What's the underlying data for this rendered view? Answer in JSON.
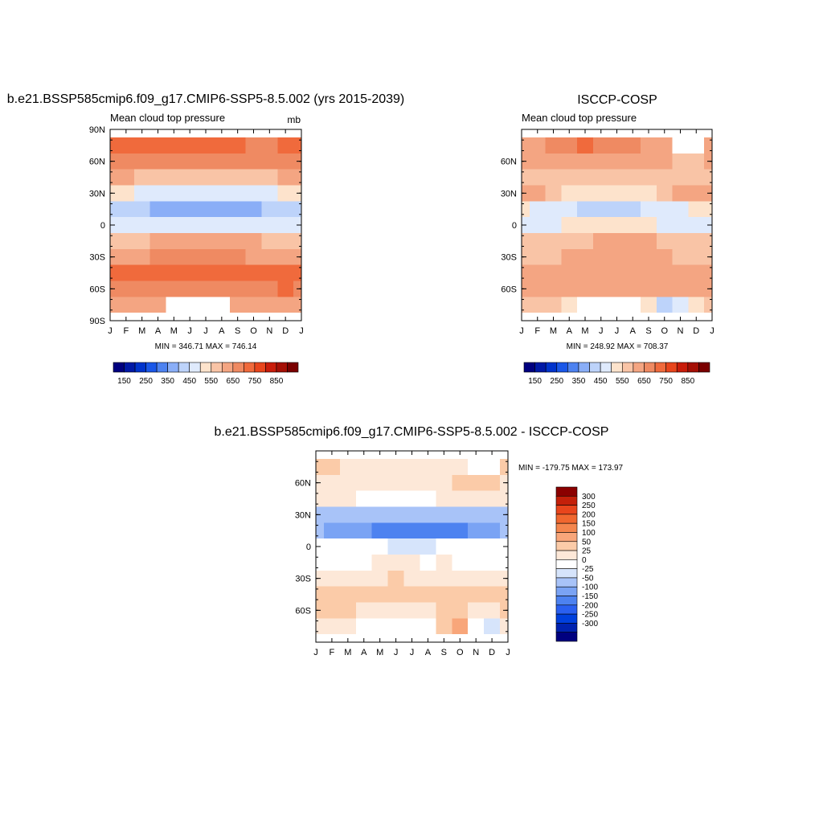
{
  "colors": {
    "abs_scale": [
      "#00007f",
      "#0019a6",
      "#0033cc",
      "#1a57e8",
      "#4d82f0",
      "#8aaef7",
      "#bdd3fa",
      "#dfeafc",
      "#fde3cc",
      "#f9c4a6",
      "#f4a582",
      "#ef8a62",
      "#f06a3c",
      "#e8451c",
      "#c91c0a",
      "#a50f05",
      "#7a0000"
    ],
    "diff_scale": [
      "#00007f",
      "#0022b0",
      "#0040dd",
      "#2a60f0",
      "#4d82f0",
      "#7aa3f4",
      "#a8c3f8",
      "#d6e4fb",
      "#ffffff",
      "#fde8d8",
      "#fbcba8",
      "#f8a67a",
      "#f4864e",
      "#f0672f",
      "#e8451c",
      "#c4200a",
      "#8b0000"
    ]
  },
  "panels": {
    "model": {
      "title": "b.e21.BSSP585cmip6.f09_g17.CMIP6-SSP5-8.5.002 (yrs 2015-2039)",
      "left_label": "Mean cloud top pressure",
      "right_label": "mb",
      "stats": "MIN = 346.71 MAX = 746.14",
      "y_ticks": [
        "90N",
        "60N",
        "30N",
        "0",
        "30S",
        "60S",
        "90S"
      ]
    },
    "obs": {
      "title": "ISCCP-COSP",
      "left_label": "Mean cloud top pressure",
      "stats": "MIN = 248.92 MAX = 708.37",
      "y_ticks": [
        "60N",
        "30N",
        "0",
        "30S",
        "60S"
      ]
    },
    "diff": {
      "title": "b.e21.BSSP585cmip6.f09_g17.CMIP6-SSP5-8.5.002 - ISCCP-COSP",
      "stats": "MIN = -179.75 MAX = 173.97",
      "y_ticks": [
        "60N",
        "30N",
        "0",
        "30S",
        "60S"
      ]
    }
  },
  "months": [
    "J",
    "F",
    "M",
    "A",
    "M",
    "J",
    "J",
    "A",
    "S",
    "O",
    "N",
    "D",
    "J"
  ],
  "abs_colorbar_labels": [
    "150",
    "250",
    "350",
    "450",
    "550",
    "650",
    "750",
    "850"
  ],
  "diff_colorbar_labels": [
    "300",
    "250",
    "200",
    "150",
    "100",
    "50",
    "25",
    "0",
    "-25",
    "-50",
    "-100",
    "-150",
    "-200",
    "-250",
    "-300"
  ],
  "chart_data": [
    {
      "type": "heatmap",
      "title": "b.e21.BSSP585cmip6.f09_g17.CMIP6-SSP5-8.5.002 (yrs 2015-2039)",
      "subtitle": "Mean cloud top pressure",
      "units": "mb",
      "x_ticks": [
        "J",
        "F",
        "M",
        "A",
        "M",
        "J",
        "J",
        "A",
        "S",
        "O",
        "N",
        "D",
        "J"
      ],
      "y_ticks": [
        "90N",
        "60N",
        "30N",
        "0",
        "30S",
        "60S",
        "90S"
      ],
      "ylim": [
        -90,
        90
      ],
      "latitudes": [
        75,
        60,
        45,
        30,
        15,
        0,
        -15,
        -30,
        -45,
        -60,
        -75
      ],
      "values": [
        [
          700,
          700,
          720,
          740,
          745,
          740,
          735,
          720,
          700,
          690,
          690,
          700,
          700
        ],
        [
          660,
          660,
          660,
          660,
          660,
          660,
          660,
          660,
          660,
          660,
          660,
          660,
          660
        ],
        [
          600,
          600,
          590,
          580,
          580,
          580,
          580,
          580,
          580,
          580,
          590,
          600,
          600
        ],
        [
          500,
          500,
          480,
          470,
          460,
          460,
          460,
          460,
          470,
          480,
          490,
          500,
          500
        ],
        [
          430,
          420,
          400,
          380,
          370,
          360,
          360,
          360,
          370,
          390,
          410,
          420,
          430
        ],
        [
          470,
          470,
          480,
          490,
          490,
          490,
          490,
          480,
          480,
          490,
          480,
          470,
          470
        ],
        [
          560,
          560,
          580,
          600,
          620,
          630,
          640,
          640,
          630,
          600,
          580,
          570,
          560
        ],
        [
          620,
          620,
          630,
          650,
          670,
          690,
          690,
          680,
          660,
          640,
          630,
          620,
          620
        ],
        [
          700,
          700,
          700,
          700,
          700,
          700,
          700,
          700,
          700,
          700,
          700,
          700,
          700
        ],
        [
          690,
          690,
          680,
          670,
          670,
          670,
          670,
          670,
          670,
          680,
          690,
          700,
          690
        ],
        [
          600,
          600,
          600,
          600,
          null,
          null,
          null,
          null,
          600,
          600,
          600,
          600,
          600
        ]
      ],
      "stats": "MIN = 346.71 MAX = 746.14",
      "colorbar_labels": [
        "150",
        "250",
        "350",
        "450",
        "550",
        "650",
        "750",
        "850"
      ]
    },
    {
      "type": "heatmap",
      "title": "ISCCP-COSP",
      "subtitle": "Mean cloud top pressure",
      "x_ticks": [
        "J",
        "F",
        "M",
        "A",
        "M",
        "J",
        "J",
        "A",
        "S",
        "O",
        "N",
        "D",
        "J"
      ],
      "y_ticks": [
        "60N",
        "30N",
        "0",
        "30S",
        "60S"
      ],
      "ylim": [
        -90,
        90
      ],
      "latitudes": [
        75,
        60,
        45,
        30,
        15,
        0,
        -15,
        -30,
        -45,
        -60,
        -75
      ],
      "values": [
        [
          600,
          600,
          650,
          690,
          700,
          690,
          680,
          650,
          620,
          600,
          null,
          null,
          600
        ],
        [
          600,
          600,
          610,
          620,
          620,
          620,
          610,
          600,
          600,
          600,
          590,
          590,
          600
        ],
        [
          550,
          550,
          560,
          560,
          560,
          560,
          560,
          560,
          550,
          550,
          550,
          550,
          550
        ],
        [
          640,
          620,
          560,
          540,
          540,
          540,
          540,
          540,
          540,
          560,
          600,
          620,
          640
        ],
        [
          500,
          480,
          460,
          450,
          440,
          440,
          440,
          440,
          450,
          460,
          480,
          500,
          500
        ],
        [
          490,
          490,
          490,
          500,
          510,
          520,
          520,
          510,
          500,
          490,
          490,
          490,
          490
        ],
        [
          560,
          560,
          570,
          580,
          590,
          600,
          610,
          610,
          600,
          590,
          580,
          570,
          560
        ],
        [
          590,
          590,
          590,
          600,
          600,
          620,
          630,
          620,
          610,
          600,
          590,
          590,
          590
        ],
        [
          600,
          600,
          600,
          600,
          600,
          600,
          600,
          600,
          600,
          600,
          600,
          600,
          600
        ],
        [
          600,
          600,
          600,
          600,
          600,
          600,
          600,
          600,
          600,
          600,
          600,
          600,
          600
        ],
        [
          560,
          560,
          560,
          520,
          null,
          null,
          null,
          null,
          540,
          430,
          480,
          540,
          560
        ]
      ],
      "stats": "MIN = 248.92 MAX = 708.37",
      "colorbar_labels": [
        "150",
        "250",
        "350",
        "450",
        "550",
        "650",
        "750",
        "850"
      ]
    },
    {
      "type": "heatmap",
      "title": "b.e21.BSSP585cmip6.f09_g17.CMIP6-SSP5-8.5.002 - ISCCP-COSP",
      "x_ticks": [
        "J",
        "F",
        "M",
        "A",
        "M",
        "J",
        "J",
        "A",
        "S",
        "O",
        "N",
        "D",
        "J"
      ],
      "y_ticks": [
        "60N",
        "30N",
        "0",
        "30S",
        "60S"
      ],
      "ylim": [
        -90,
        90
      ],
      "latitudes": [
        75,
        60,
        45,
        30,
        15,
        0,
        -15,
        -30,
        -45,
        -60,
        -75
      ],
      "values": [
        [
          80,
          80,
          60,
          40,
          40,
          40,
          40,
          50,
          60,
          60,
          null,
          null,
          80
        ],
        [
          60,
          60,
          50,
          40,
          40,
          40,
          50,
          60,
          60,
          70,
          70,
          70,
          60
        ],
        [
          40,
          40,
          30,
          20,
          20,
          20,
          20,
          20,
          30,
          30,
          40,
          40,
          40
        ],
        [
          -80,
          -100,
          -90,
          -80,
          -80,
          -80,
          -80,
          -80,
          -80,
          -90,
          -100,
          -100,
          -80
        ],
        [
          -80,
          -110,
          -120,
          -130,
          -150,
          -160,
          -150,
          -160,
          -170,
          -160,
          -140,
          -120,
          -80
        ],
        [
          -20,
          -20,
          -10,
          -10,
          -20,
          -30,
          -40,
          -30,
          -20,
          -10,
          -10,
          -20,
          -20
        ],
        [
          0,
          0,
          10,
          20,
          30,
          30,
          30,
          20,
          30,
          10,
          0,
          0,
          0
        ],
        [
          30,
          30,
          40,
          50,
          60,
          70,
          60,
          60,
          50,
          40,
          30,
          30,
          30
        ],
        [
          90,
          90,
          90,
          90,
          90,
          90,
          90,
          90,
          90,
          90,
          90,
          90,
          90
        ],
        [
          80,
          80,
          70,
          60,
          60,
          60,
          60,
          60,
          80,
          80,
          50,
          40,
          80
        ],
        [
          40,
          40,
          60,
          null,
          null,
          null,
          null,
          null,
          80,
          120,
          -20,
          -40,
          40
        ]
      ],
      "stats": "MIN = -179.75 MAX = 173.97",
      "colorbar_labels": [
        "300",
        "250",
        "200",
        "150",
        "100",
        "50",
        "25",
        "0",
        "-25",
        "-50",
        "-100",
        "-150",
        "-200",
        "-250",
        "-300"
      ]
    }
  ]
}
